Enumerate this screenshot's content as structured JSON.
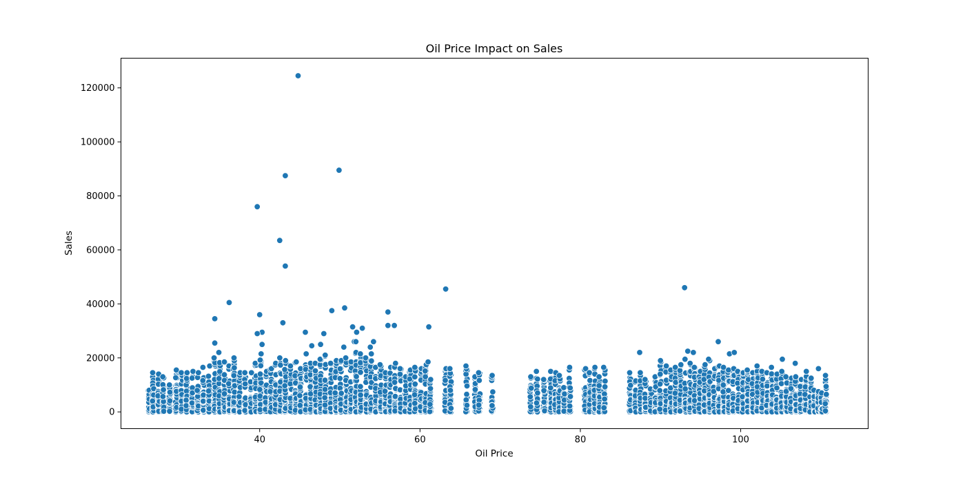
{
  "chart_data": {
    "type": "scatter",
    "title": "Oil Price Impact on Sales",
    "xlabel": "Oil Price",
    "ylabel": "Sales",
    "xlim": [
      22.7,
      115.9
    ],
    "ylim": [
      -6200,
      131000
    ],
    "xticks": [
      40,
      60,
      80,
      100
    ],
    "yticks": [
      0,
      20000,
      40000,
      60000,
      80000,
      100000,
      120000
    ],
    "grid": false,
    "marker_color": "#1f77b4",
    "marker_edge_color": "#ffffff",
    "oil_price_groups": [
      {
        "x": 26.2,
        "max": 8000
      },
      {
        "x": 26.7,
        "max": 14500
      },
      {
        "x": 27.4,
        "max": 14000
      },
      {
        "x": 28.0,
        "max": 13000
      },
      {
        "x": 28.8,
        "max": 10000
      },
      {
        "x": 29.6,
        "max": 15500
      },
      {
        "x": 30.3,
        "max": 14500
      },
      {
        "x": 30.9,
        "max": 14500
      },
      {
        "x": 31.6,
        "max": 15000
      },
      {
        "x": 32.3,
        "max": 14500
      },
      {
        "x": 33.0,
        "max": 16500
      },
      {
        "x": 33.7,
        "max": 17000
      },
      {
        "x": 34.4,
        "max": 20000
      },
      {
        "x": 35.0,
        "max": 22000
      },
      {
        "x": 35.6,
        "max": 18500
      },
      {
        "x": 36.2,
        "max": 17000
      },
      {
        "x": 36.8,
        "max": 20000
      },
      {
        "x": 37.5,
        "max": 14500
      },
      {
        "x": 38.2,
        "max": 14500
      },
      {
        "x": 38.9,
        "max": 14500
      },
      {
        "x": 39.5,
        "max": 18000
      },
      {
        "x": 40.1,
        "max": 21500
      },
      {
        "x": 40.8,
        "max": 15000
      },
      {
        "x": 41.4,
        "max": 16000
      },
      {
        "x": 42.0,
        "max": 18000
      },
      {
        "x": 42.6,
        "max": 20000
      },
      {
        "x": 43.2,
        "max": 19000
      },
      {
        "x": 43.9,
        "max": 17000
      },
      {
        "x": 44.5,
        "max": 18500
      },
      {
        "x": 45.1,
        "max": 16000
      },
      {
        "x": 45.8,
        "max": 21500
      },
      {
        "x": 46.4,
        "max": 18000
      },
      {
        "x": 47.0,
        "max": 18000
      },
      {
        "x": 47.6,
        "max": 19500
      },
      {
        "x": 48.2,
        "max": 21000
      },
      {
        "x": 48.9,
        "max": 18000
      },
      {
        "x": 49.5,
        "max": 19000
      },
      {
        "x": 50.1,
        "max": 19000
      },
      {
        "x": 50.8,
        "max": 20000
      },
      {
        "x": 51.4,
        "max": 18500
      },
      {
        "x": 52.0,
        "max": 22000
      },
      {
        "x": 52.6,
        "max": 21500
      },
      {
        "x": 53.3,
        "max": 20000
      },
      {
        "x": 53.9,
        "max": 21500
      },
      {
        "x": 54.5,
        "max": 16500
      },
      {
        "x": 55.1,
        "max": 17500
      },
      {
        "x": 55.7,
        "max": 14500
      },
      {
        "x": 56.3,
        "max": 16500
      },
      {
        "x": 56.9,
        "max": 18000
      },
      {
        "x": 57.6,
        "max": 16000
      },
      {
        "x": 58.2,
        "max": 13000
      },
      {
        "x": 58.8,
        "max": 15500
      },
      {
        "x": 59.4,
        "max": 16500
      },
      {
        "x": 60.1,
        "max": 16000
      },
      {
        "x": 60.7,
        "max": 17500
      },
      {
        "x": 61.3,
        "max": 12000
      },
      {
        "x": 63.2,
        "max": 16000
      },
      {
        "x": 63.8,
        "max": 16000
      },
      {
        "x": 65.8,
        "max": 17000
      },
      {
        "x": 66.9,
        "max": 13000
      },
      {
        "x": 67.4,
        "max": 14500
      },
      {
        "x": 69.0,
        "max": 13500
      },
      {
        "x": 73.8,
        "max": 13000
      },
      {
        "x": 74.6,
        "max": 15000
      },
      {
        "x": 75.5,
        "max": 12000
      },
      {
        "x": 76.3,
        "max": 15000
      },
      {
        "x": 76.9,
        "max": 14500
      },
      {
        "x": 77.4,
        "max": 13500
      },
      {
        "x": 78.0,
        "max": 9000
      },
      {
        "x": 78.7,
        "max": 16500
      },
      {
        "x": 80.6,
        "max": 16000
      },
      {
        "x": 81.2,
        "max": 14500
      },
      {
        "x": 81.8,
        "max": 16500
      },
      {
        "x": 82.4,
        "max": 13000
      },
      {
        "x": 83.0,
        "max": 16500
      },
      {
        "x": 86.2,
        "max": 14500
      },
      {
        "x": 86.9,
        "max": 11500
      },
      {
        "x": 87.5,
        "max": 14500
      },
      {
        "x": 88.1,
        "max": 12000
      },
      {
        "x": 88.8,
        "max": 8500
      },
      {
        "x": 89.4,
        "max": 13000
      },
      {
        "x": 90.0,
        "max": 19000
      },
      {
        "x": 90.7,
        "max": 17000
      },
      {
        "x": 91.3,
        "max": 15500
      },
      {
        "x": 91.9,
        "max": 16500
      },
      {
        "x": 92.5,
        "max": 17500
      },
      {
        "x": 93.1,
        "max": 19500
      },
      {
        "x": 93.7,
        "max": 18000
      },
      {
        "x": 94.3,
        "max": 16500
      },
      {
        "x": 94.9,
        "max": 15000
      },
      {
        "x": 95.5,
        "max": 17500
      },
      {
        "x": 96.1,
        "max": 19000
      },
      {
        "x": 96.7,
        "max": 16000
      },
      {
        "x": 97.3,
        "max": 17000
      },
      {
        "x": 97.9,
        "max": 16500
      },
      {
        "x": 98.5,
        "max": 15500
      },
      {
        "x": 99.1,
        "max": 16000
      },
      {
        "x": 99.7,
        "max": 15000
      },
      {
        "x": 100.3,
        "max": 14500
      },
      {
        "x": 100.9,
        "max": 15500
      },
      {
        "x": 101.5,
        "max": 14500
      },
      {
        "x": 102.1,
        "max": 17000
      },
      {
        "x": 102.7,
        "max": 15000
      },
      {
        "x": 103.3,
        "max": 14500
      },
      {
        "x": 103.9,
        "max": 16500
      },
      {
        "x": 104.5,
        "max": 14000
      },
      {
        "x": 105.1,
        "max": 15000
      },
      {
        "x": 105.7,
        "max": 13000
      },
      {
        "x": 106.3,
        "max": 12500
      },
      {
        "x": 106.9,
        "max": 13000
      },
      {
        "x": 107.5,
        "max": 12000
      },
      {
        "x": 108.1,
        "max": 15000
      },
      {
        "x": 108.7,
        "max": 12500
      },
      {
        "x": 109.2,
        "max": 8000
      },
      {
        "x": 109.7,
        "max": 7500
      },
      {
        "x": 110.1,
        "max": 7000
      },
      {
        "x": 110.6,
        "max": 13500
      }
    ],
    "outliers": [
      {
        "x": 44.8,
        "y": 124500
      },
      {
        "x": 49.9,
        "y": 89500
      },
      {
        "x": 43.2,
        "y": 87500
      },
      {
        "x": 39.7,
        "y": 76000
      },
      {
        "x": 42.5,
        "y": 63500
      },
      {
        "x": 43.2,
        "y": 54000
      },
      {
        "x": 93.0,
        "y": 46000
      },
      {
        "x": 63.2,
        "y": 45500
      },
      {
        "x": 36.2,
        "y": 40500
      },
      {
        "x": 50.6,
        "y": 38500
      },
      {
        "x": 49.0,
        "y": 37500
      },
      {
        "x": 56.0,
        "y": 37000
      },
      {
        "x": 40.0,
        "y": 36000
      },
      {
        "x": 34.4,
        "y": 34500
      },
      {
        "x": 42.9,
        "y": 33000
      },
      {
        "x": 56.0,
        "y": 32000
      },
      {
        "x": 56.8,
        "y": 32000
      },
      {
        "x": 51.6,
        "y": 31500
      },
      {
        "x": 52.8,
        "y": 31000
      },
      {
        "x": 61.1,
        "y": 31500
      },
      {
        "x": 40.3,
        "y": 29500
      },
      {
        "x": 39.7,
        "y": 29000
      },
      {
        "x": 45.7,
        "y": 29500
      },
      {
        "x": 48.0,
        "y": 29000
      },
      {
        "x": 52.1,
        "y": 29500
      },
      {
        "x": 97.2,
        "y": 26000
      },
      {
        "x": 54.2,
        "y": 26000
      },
      {
        "x": 51.8,
        "y": 26000
      },
      {
        "x": 52.0,
        "y": 26000
      },
      {
        "x": 34.4,
        "y": 25500
      },
      {
        "x": 40.3,
        "y": 25000
      },
      {
        "x": 47.6,
        "y": 25000
      },
      {
        "x": 46.5,
        "y": 24500
      },
      {
        "x": 50.5,
        "y": 24000
      },
      {
        "x": 93.4,
        "y": 22500
      },
      {
        "x": 94.1,
        "y": 22000
      },
      {
        "x": 98.6,
        "y": 21500
      },
      {
        "x": 99.2,
        "y": 22000
      },
      {
        "x": 87.4,
        "y": 22000
      },
      {
        "x": 53.8,
        "y": 24000
      },
      {
        "x": 105.2,
        "y": 19500
      },
      {
        "x": 106.8,
        "y": 18000
      },
      {
        "x": 61.0,
        "y": 18500
      },
      {
        "x": 109.7,
        "y": 16000
      },
      {
        "x": 96.0,
        "y": 19500
      }
    ]
  }
}
